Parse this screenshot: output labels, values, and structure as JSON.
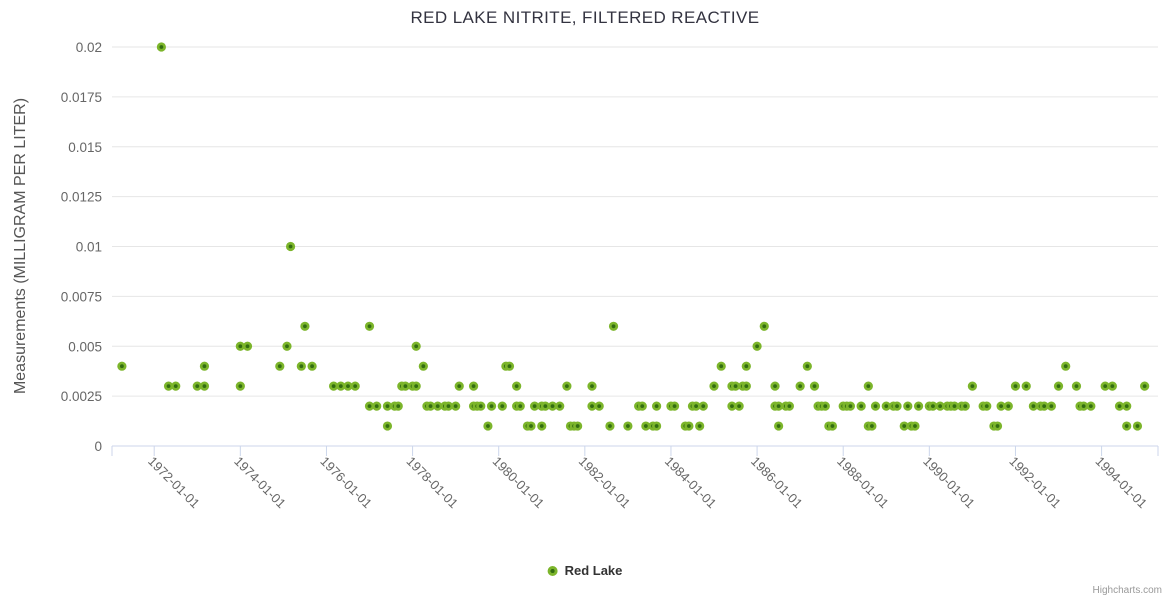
{
  "title": "RED LAKE NITRITE, FILTERED REACTIVE",
  "legend": {
    "items": [
      {
        "label": "Red Lake",
        "marker_color": "#7cb52b"
      }
    ]
  },
  "credits": {
    "text": "Highcharts.com"
  },
  "colors": {
    "marker_fill": "#7cb52b",
    "marker_center": "#336d11",
    "grid_line": "#e6e6e6",
    "axis_line": "#ccd6eb",
    "tick_label": "#666666",
    "title_text": "#333340"
  },
  "chart_data": {
    "type": "scatter",
    "title": "RED LAKE NITRITE, FILTERED REACTIVE",
    "xlabel": "",
    "ylabel": "Measurements (MILLIGRAM PER LITER)",
    "series_name": "Red Lake",
    "legend_position": "bottom-center",
    "grid": "horizontal-only",
    "ylim": [
      0,
      0.02
    ],
    "y_tick_labels": [
      "0",
      "0.0025",
      "0.005",
      "0.0075",
      "0.01",
      "0.0125",
      "0.015",
      "0.0175",
      "0.02"
    ],
    "x_tick_labels": [
      "1972-01-01",
      "1974-01-01",
      "1976-01-01",
      "1978-01-01",
      "1980-01-01",
      "1982-01-01",
      "1984-01-01",
      "1986-01-01",
      "1988-01-01",
      "1990-01-01",
      "1992-01-01",
      "1994-01-01"
    ],
    "x_axis_range": [
      "1971-01",
      "1995-04"
    ],
    "points": [
      [
        "1971-04",
        0.004
      ],
      [
        "1972-03",
        0.02
      ],
      [
        "1972-05",
        0.003
      ],
      [
        "1972-07",
        0.003
      ],
      [
        "1973-01",
        0.003
      ],
      [
        "1973-03",
        0.003
      ],
      [
        "1973-03",
        0.004
      ],
      [
        "1974-01",
        0.005
      ],
      [
        "1974-03",
        0.005
      ],
      [
        "1974-01",
        0.003
      ],
      [
        "1974-12",
        0.004
      ],
      [
        "1975-02",
        0.005
      ],
      [
        "1975-03",
        0.01
      ],
      [
        "1975-06",
        0.004
      ],
      [
        "1975-07",
        0.006
      ],
      [
        "1975-09",
        0.004
      ],
      [
        "1976-03",
        0.003
      ],
      [
        "1976-05",
        0.003
      ],
      [
        "1976-07",
        0.003
      ],
      [
        "1976-09",
        0.003
      ],
      [
        "1977-01",
        0.006
      ],
      [
        "1977-01",
        0.002
      ],
      [
        "1977-03",
        0.002
      ],
      [
        "1977-06",
        0.002
      ],
      [
        "1977-08",
        0.002
      ],
      [
        "1977-09",
        0.002
      ],
      [
        "1977-06",
        0.001
      ],
      [
        "1977-10",
        0.003
      ],
      [
        "1977-11",
        0.003
      ],
      [
        "1978-01",
        0.003
      ],
      [
        "1978-02",
        0.003
      ],
      [
        "1978-02",
        0.005
      ],
      [
        "1978-04",
        0.004
      ],
      [
        "1978-05",
        0.002
      ],
      [
        "1978-06",
        0.002
      ],
      [
        "1978-08",
        0.002
      ],
      [
        "1978-10",
        0.002
      ],
      [
        "1978-11",
        0.002
      ],
      [
        "1979-01",
        0.002
      ],
      [
        "1979-02",
        0.003
      ],
      [
        "1979-06",
        0.003
      ],
      [
        "1979-06",
        0.002
      ],
      [
        "1979-07",
        0.002
      ],
      [
        "1979-08",
        0.002
      ],
      [
        "1979-11",
        0.002
      ],
      [
        "1980-02",
        0.002
      ],
      [
        "1979-10",
        0.001
      ],
      [
        "1980-03",
        0.004
      ],
      [
        "1980-04",
        0.004
      ],
      [
        "1980-06",
        0.003
      ],
      [
        "1980-06",
        0.002
      ],
      [
        "1980-07",
        0.002
      ],
      [
        "1980-09",
        0.001
      ],
      [
        "1980-10",
        0.001
      ],
      [
        "1980-11",
        0.002
      ],
      [
        "1981-01",
        0.001
      ],
      [
        "1981-01",
        0.002
      ],
      [
        "1981-02",
        0.002
      ],
      [
        "1981-04",
        0.002
      ],
      [
        "1981-06",
        0.002
      ],
      [
        "1981-08",
        0.003
      ],
      [
        "1981-09",
        0.001
      ],
      [
        "1981-10",
        0.001
      ],
      [
        "1981-11",
        0.001
      ],
      [
        "1982-03",
        0.003
      ],
      [
        "1982-03",
        0.002
      ],
      [
        "1982-05",
        0.002
      ],
      [
        "1982-08",
        0.001
      ],
      [
        "1982-09",
        0.006
      ],
      [
        "1983-01",
        0.001
      ],
      [
        "1983-04",
        0.002
      ],
      [
        "1983-05",
        0.002
      ],
      [
        "1983-06",
        0.001
      ],
      [
        "1983-08",
        0.001
      ],
      [
        "1983-09",
        0.001
      ],
      [
        "1983-09",
        0.002
      ],
      [
        "1984-01",
        0.002
      ],
      [
        "1984-02",
        0.002
      ],
      [
        "1984-05",
        0.001
      ],
      [
        "1984-06",
        0.001
      ],
      [
        "1984-07",
        0.002
      ],
      [
        "1984-08",
        0.002
      ],
      [
        "1984-10",
        0.002
      ],
      [
        "1984-09",
        0.001
      ],
      [
        "1985-01",
        0.003
      ],
      [
        "1985-03",
        0.004
      ],
      [
        "1985-06",
        0.003
      ],
      [
        "1985-06",
        0.002
      ],
      [
        "1985-07",
        0.003
      ],
      [
        "1985-08",
        0.002
      ],
      [
        "1985-09",
        0.003
      ],
      [
        "1985-10",
        0.004
      ],
      [
        "1985-10",
        0.003
      ],
      [
        "1986-01",
        0.005
      ],
      [
        "1986-03",
        0.006
      ],
      [
        "1986-06",
        0.003
      ],
      [
        "1986-06",
        0.002
      ],
      [
        "1986-07",
        0.001
      ],
      [
        "1986-07",
        0.002
      ],
      [
        "1986-09",
        0.002
      ],
      [
        "1986-10",
        0.002
      ],
      [
        "1987-01",
        0.003
      ],
      [
        "1987-03",
        0.004
      ],
      [
        "1987-05",
        0.003
      ],
      [
        "1987-06",
        0.002
      ],
      [
        "1987-07",
        0.002
      ],
      [
        "1987-08",
        0.002
      ],
      [
        "1987-09",
        0.001
      ],
      [
        "1987-10",
        0.001
      ],
      [
        "1988-01",
        0.002
      ],
      [
        "1988-02",
        0.002
      ],
      [
        "1988-03",
        0.002
      ],
      [
        "1988-06",
        0.002
      ],
      [
        "1988-08",
        0.003
      ],
      [
        "1988-08",
        0.001
      ],
      [
        "1988-09",
        0.001
      ],
      [
        "1988-10",
        0.002
      ],
      [
        "1989-01",
        0.002
      ],
      [
        "1989-03",
        0.002
      ],
      [
        "1989-04",
        0.002
      ],
      [
        "1989-06",
        0.001
      ],
      [
        "1989-07",
        0.002
      ],
      [
        "1989-08",
        0.001
      ],
      [
        "1989-09",
        0.001
      ],
      [
        "1989-10",
        0.002
      ],
      [
        "1990-01",
        0.002
      ],
      [
        "1990-02",
        0.002
      ],
      [
        "1990-04",
        0.002
      ],
      [
        "1990-06",
        0.002
      ],
      [
        "1990-07",
        0.002
      ],
      [
        "1990-08",
        0.002
      ],
      [
        "1990-10",
        0.002
      ],
      [
        "1990-11",
        0.002
      ],
      [
        "1991-01",
        0.003
      ],
      [
        "1991-04",
        0.002
      ],
      [
        "1991-05",
        0.002
      ],
      [
        "1991-07",
        0.001
      ],
      [
        "1991-08",
        0.001
      ],
      [
        "1991-09",
        0.002
      ],
      [
        "1991-11",
        0.002
      ],
      [
        "1992-01",
        0.003
      ],
      [
        "1992-04",
        0.003
      ],
      [
        "1992-06",
        0.002
      ],
      [
        "1992-08",
        0.002
      ],
      [
        "1992-09",
        0.002
      ],
      [
        "1992-11",
        0.002
      ],
      [
        "1993-01",
        0.003
      ],
      [
        "1993-03",
        0.004
      ],
      [
        "1993-06",
        0.003
      ],
      [
        "1993-07",
        0.002
      ],
      [
        "1993-08",
        0.002
      ],
      [
        "1993-10",
        0.002
      ],
      [
        "1994-02",
        0.003
      ],
      [
        "1994-04",
        0.003
      ],
      [
        "1994-06",
        0.002
      ],
      [
        "1994-08",
        0.001
      ],
      [
        "1994-08",
        0.002
      ],
      [
        "1994-11",
        0.001
      ],
      [
        "1995-01",
        0.003
      ]
    ]
  }
}
